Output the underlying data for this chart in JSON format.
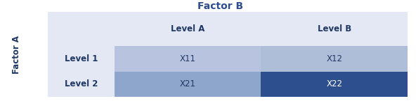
{
  "title": "Factor B",
  "ylabel": "Factor A",
  "col_headers": [
    "",
    "Level A",
    "Level B"
  ],
  "row_headers": [
    "",
    "Level 1",
    "Level 2"
  ],
  "cell_values": [
    [
      "X11",
      "X12"
    ],
    [
      "X21",
      "X22"
    ]
  ],
  "title_color": "#2E4D8E",
  "header_text_color": "#1F3864",
  "row_label_color": "#1F3864",
  "cell_text_color_normal": "#1F3864",
  "cell_text_color_dark": "#FFFFFF",
  "bg_color": "#FFFFFF",
  "header_row_bg": "#E4E8F4",
  "row1_col1_bg": "#B8C4DF",
  "row1_col2_bg": "#AEBDD8",
  "row2_col1_bg": "#8EA5CC",
  "row2_col2_bg": "#2E4F8E",
  "row_label_bg": "#E4E8F4",
  "corner_bg": "#E4E8F4",
  "title_fontsize": 10,
  "header_fontsize": 8.5,
  "cell_fontsize": 8.5,
  "ylabel_fontsize": 8.5,
  "row_label_fontsize": 8.5
}
